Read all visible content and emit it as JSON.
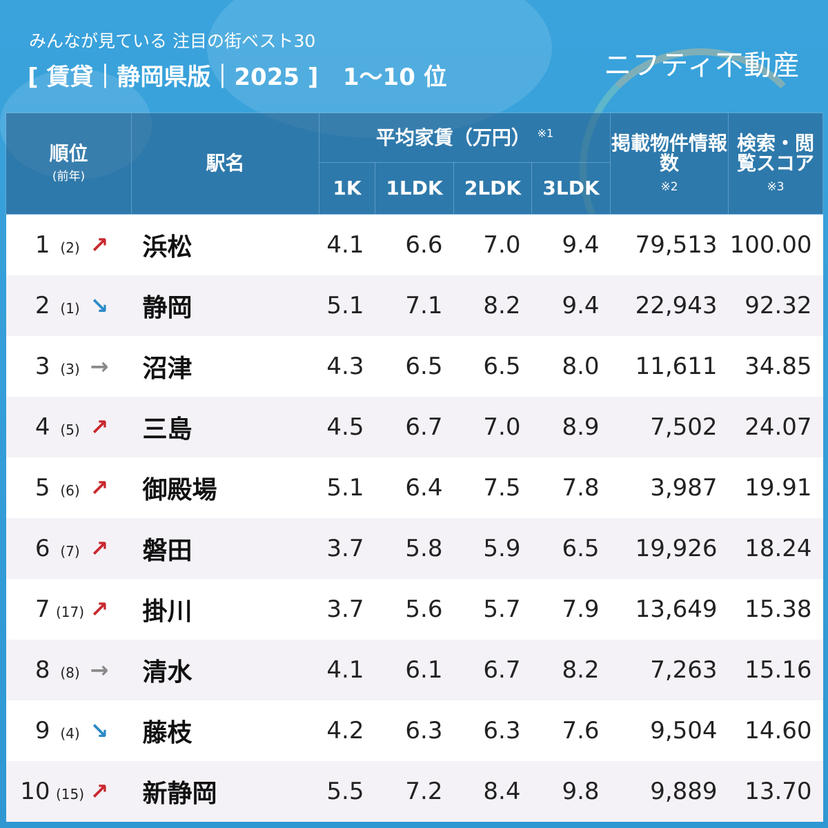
{
  "header": {
    "subtitle": "みんなが見ている 注目の街ベスト30",
    "title": "[ 賃貸｜静岡県版｜2025 ]   1〜10 位",
    "logo": "ニフティ不動産"
  },
  "columns": {
    "rank": "順位",
    "rank_sub": "(前年)",
    "station": "駅名",
    "rent": "平均家賃（万円）",
    "rent_note": "※1",
    "k1": "1K",
    "ldk1": "1LDK",
    "ldk2": "2LDK",
    "ldk3": "3LDK",
    "listings": "掲載物件情報数",
    "listings_note": "※2",
    "score": "検索・閲覧スコア",
    "score_note": "※3"
  },
  "colors": {
    "up": "#c8282e",
    "down": "#2b8ac6",
    "same": "#8a8a8a"
  },
  "rows": [
    {
      "rank": "1",
      "prev": "(2)",
      "trend": "up",
      "arrow": "↗",
      "station": "浜松",
      "k1": "4.1",
      "ldk1": "6.6",
      "ldk2": "7.0",
      "ldk3": "9.4",
      "listings": "79,513",
      "score": "100.00"
    },
    {
      "rank": "2",
      "prev": "(1)",
      "trend": "down",
      "arrow": "↘",
      "station": "静岡",
      "k1": "5.1",
      "ldk1": "7.1",
      "ldk2": "8.2",
      "ldk3": "9.4",
      "listings": "22,943",
      "score": "92.32"
    },
    {
      "rank": "3",
      "prev": "(3)",
      "trend": "same",
      "arrow": "→",
      "station": "沼津",
      "k1": "4.3",
      "ldk1": "6.5",
      "ldk2": "6.5",
      "ldk3": "8.0",
      "listings": "11,611",
      "score": "34.85"
    },
    {
      "rank": "4",
      "prev": "(5)",
      "trend": "up",
      "arrow": "↗",
      "station": "三島",
      "k1": "4.5",
      "ldk1": "6.7",
      "ldk2": "7.0",
      "ldk3": "8.9",
      "listings": "7,502",
      "score": "24.07"
    },
    {
      "rank": "5",
      "prev": "(6)",
      "trend": "up",
      "arrow": "↗",
      "station": "御殿場",
      "k1": "5.1",
      "ldk1": "6.4",
      "ldk2": "7.5",
      "ldk3": "7.8",
      "listings": "3,987",
      "score": "19.91"
    },
    {
      "rank": "6",
      "prev": "(7)",
      "trend": "up",
      "arrow": "↗",
      "station": "磐田",
      "k1": "3.7",
      "ldk1": "5.8",
      "ldk2": "5.9",
      "ldk3": "6.5",
      "listings": "19,926",
      "score": "18.24"
    },
    {
      "rank": "7",
      "prev": "(17)",
      "trend": "up",
      "arrow": "↗",
      "station": "掛川",
      "k1": "3.7",
      "ldk1": "5.6",
      "ldk2": "5.7",
      "ldk3": "7.9",
      "listings": "13,649",
      "score": "15.38"
    },
    {
      "rank": "8",
      "prev": "(8)",
      "trend": "same",
      "arrow": "→",
      "station": "清水",
      "k1": "4.1",
      "ldk1": "6.1",
      "ldk2": "6.7",
      "ldk3": "8.2",
      "listings": "7,263",
      "score": "15.16"
    },
    {
      "rank": "9",
      "prev": "(4)",
      "trend": "down",
      "arrow": "↘",
      "station": "藤枝",
      "k1": "4.2",
      "ldk1": "6.3",
      "ldk2": "6.3",
      "ldk3": "7.6",
      "listings": "9,504",
      "score": "14.60"
    },
    {
      "rank": "10",
      "prev": "(15)",
      "trend": "up",
      "arrow": "↗",
      "station": "新静岡",
      "k1": "5.5",
      "ldk1": "7.2",
      "ldk2": "8.4",
      "ldk3": "9.8",
      "listings": "9,889",
      "score": "13.70"
    }
  ]
}
